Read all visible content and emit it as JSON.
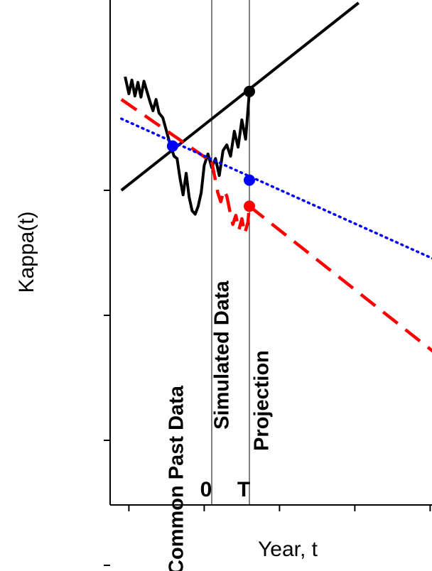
{
  "chart_data": {
    "type": "line",
    "title": "",
    "xlabel": "Year, t",
    "ylabel": "Kappa(t)",
    "xlim": [
      -1.2,
      3.0
    ],
    "ylim": [
      -4.0,
      0.4
    ],
    "xticks": [
      -1.1,
      -0.1,
      0.9,
      1.9,
      2.9
    ],
    "yticks": [
      -3.3,
      -2.2,
      -1.1,
      0.0
    ],
    "grid": false,
    "legend": "none",
    "vlines": [
      {
        "name": "t0",
        "x": 0.0,
        "label": "0"
      },
      {
        "name": "T",
        "x": 0.5,
        "label": "T"
      }
    ],
    "region_labels": [
      {
        "name": "common-past-data",
        "text": "Common Past Data",
        "x": -0.38,
        "y": -2.55
      },
      {
        "name": "simulated-data",
        "text": "Simulated Data",
        "x": 0.22,
        "y": -1.45
      },
      {
        "name": "projection",
        "text": "Projection",
        "x": 0.75,
        "y": -1.85
      }
    ],
    "series": [
      {
        "name": "",
        "style": "solid",
        "color": "#000000",
        "x": [
          -1.2,
          1.95
        ],
        "y": [
          0.0,
          1.65
        ]
      },
      {
        "name": "",
        "style": "path",
        "color": "#000000",
        "x": [
          -1.15,
          -1.1,
          -1.06,
          -1.02,
          -0.98,
          -0.94,
          -0.9,
          -0.86,
          -0.82,
          -0.78,
          -0.74,
          -0.7,
          -0.65,
          -0.6,
          -0.55,
          -0.5,
          -0.46,
          -0.42,
          -0.38,
          -0.34,
          -0.3,
          -0.26,
          -0.22,
          -0.18,
          -0.14,
          -0.1,
          -0.05,
          0.0,
          0.05,
          0.1,
          0.15,
          0.2,
          0.25,
          0.3,
          0.35,
          0.4,
          0.45,
          0.5
        ],
        "y": [
          1.0,
          0.85,
          0.97,
          0.83,
          0.95,
          0.82,
          0.96,
          0.87,
          0.78,
          0.7,
          0.8,
          0.68,
          0.64,
          0.52,
          0.4,
          0.3,
          0.28,
          0.1,
          -0.04,
          0.15,
          -0.06,
          -0.18,
          -0.21,
          -0.14,
          -0.02,
          0.22,
          0.32,
          0.2,
          0.28,
          0.13,
          0.35,
          0.4,
          0.3,
          0.52,
          0.38,
          0.62,
          0.45,
          0.87
        ]
      },
      {
        "name": "",
        "style": "dashed",
        "color": "#ff0000",
        "x": [
          -1.2,
          0.0
        ],
        "y": [
          0.8,
          0.25
        ]
      },
      {
        "name": "",
        "style": "dashed",
        "color": "#ff0000",
        "x": [
          0.0,
          0.04,
          0.08,
          0.12,
          0.16,
          0.2,
          0.24,
          0.28,
          0.32,
          0.36,
          0.4,
          0.44,
          0.48,
          0.5
        ],
        "y": [
          0.25,
          0.12,
          -0.02,
          -0.1,
          0.0,
          -0.05,
          -0.18,
          -0.3,
          -0.22,
          -0.35,
          -0.25,
          -0.38,
          -0.28,
          -0.14
        ]
      },
      {
        "name": "",
        "style": "dashed",
        "color": "#ff0000",
        "x": [
          0.5,
          3.0
        ],
        "y": [
          -0.14,
          -1.45
        ]
      },
      {
        "name": "",
        "style": "dotted",
        "color": "#0000ff",
        "x": [
          -1.2,
          3.0
        ],
        "y": [
          0.63,
          -0.62
        ]
      }
    ],
    "points": [
      {
        "name": "black-point",
        "x": 0.5,
        "y": 0.87,
        "color": "#000000"
      },
      {
        "name": "blue-point-past",
        "x": -0.52,
        "y": 0.39,
        "color": "#0000ff"
      },
      {
        "name": "blue-point-T",
        "x": 0.5,
        "y": 0.09,
        "color": "#0000ff"
      },
      {
        "name": "red-point-T",
        "x": 0.5,
        "y": -0.14,
        "color": "#ff0000"
      }
    ]
  }
}
